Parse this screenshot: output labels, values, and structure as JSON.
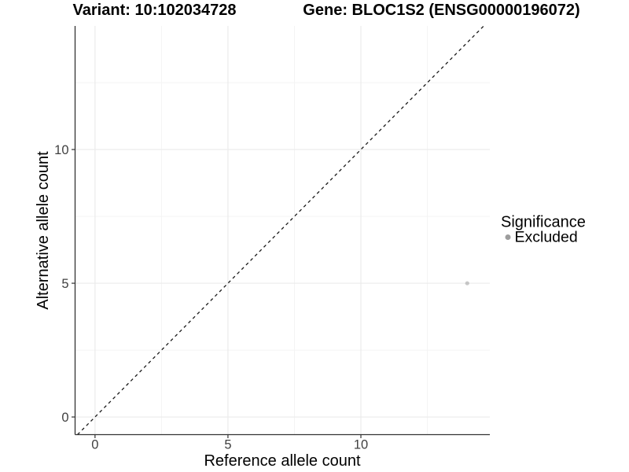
{
  "chart_data": {
    "type": "scatter",
    "titles": {
      "left": "Variant: 10:102034728",
      "right": "Gene: BLOC1S2 (ENSG00000196072)"
    },
    "xlabel": "Reference allele count",
    "ylabel": "Alternative allele count",
    "xlim": [
      -0.75,
      14.85
    ],
    "ylim": [
      -0.66,
      14.62
    ],
    "xticks": [
      0,
      5,
      10
    ],
    "yticks": [
      0,
      5,
      10
    ],
    "xticks_minor": [
      2.5,
      7.5,
      12.5
    ],
    "yticks_minor": [
      2.5,
      7.5,
      12.5
    ],
    "grid": "major+minor",
    "identity_line": {
      "equation": "y = x",
      "style": "dashed",
      "x1": -0.66,
      "y1": -0.66,
      "x2": 14.62,
      "y2": 14.62
    },
    "series": [
      {
        "name": "Excluded",
        "color": "#9d9d9d",
        "point_opacity": 0.55,
        "point_radius": 2.6,
        "points": [
          {
            "x": 14,
            "y": 5
          }
        ]
      }
    ],
    "legend": {
      "title": "Significance",
      "position": "right",
      "items": [
        {
          "label": "Excluded",
          "color": "#9d9d9d"
        }
      ]
    }
  },
  "colors": {
    "background": "#ffffff",
    "grid_major": "#ebebeb",
    "grid_minor": "#f4f4f4",
    "axis_line": "#333333",
    "tick_mark": "#333333",
    "dashed_line": "#1a1a1a"
  }
}
